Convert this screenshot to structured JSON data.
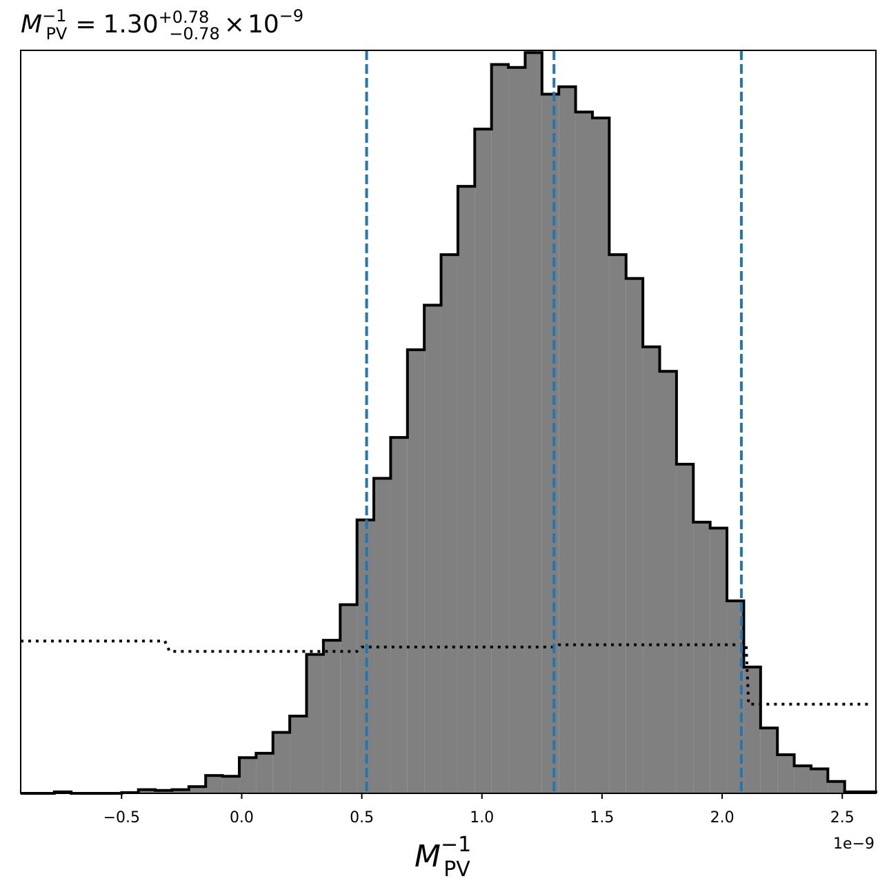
{
  "chart_data": {
    "type": "histogram",
    "title": {
      "symbol": "M",
      "symbol_sub": "PV",
      "symbol_sup": "−1",
      "equals": "=",
      "value": "1.30",
      "upper": "+0.78",
      "lower": "−0.78",
      "times": "×",
      "base": "10",
      "exponent": "−9"
    },
    "xlabel": {
      "symbol": "M",
      "sub": "PV",
      "sup": "−1"
    },
    "x_offset_text": "1e−9",
    "xlim": [
      -0.92,
      2.64
    ],
    "x_scale_factor": 1e-09,
    "xticks": [
      {
        "value": -0.5,
        "label": "−0.5"
      },
      {
        "value": 0.0,
        "label": "0.0"
      },
      {
        "value": 0.5,
        "label": "0.5"
      },
      {
        "value": 1.0,
        "label": "1.0"
      },
      {
        "value": 1.5,
        "label": "1.5"
      },
      {
        "value": 2.0,
        "label": "2.0"
      },
      {
        "value": 2.5,
        "label": "2.5"
      }
    ],
    "ylim": [
      0,
      1.0
    ],
    "yticks_shown": false,
    "grid": false,
    "histogram": {
      "bin_edges": [
        -0.92,
        -0.85,
        -0.78,
        -0.71,
        -0.64,
        -0.57,
        -0.5,
        -0.43,
        -0.36,
        -0.29,
        -0.22,
        -0.15,
        -0.08,
        -0.01,
        0.06,
        0.13,
        0.2,
        0.27,
        0.34,
        0.41,
        0.48,
        0.55,
        0.62,
        0.69,
        0.76,
        0.83,
        0.9,
        0.97,
        1.04,
        1.11,
        1.18,
        1.25,
        1.32,
        1.39,
        1.46,
        1.53,
        1.6,
        1.67,
        1.74,
        1.81,
        1.88,
        1.95,
        2.02,
        2.09,
        2.16,
        2.23,
        2.3,
        2.37,
        2.44,
        2.51,
        2.58,
        2.64
      ],
      "counts": [
        0,
        0,
        0.002,
        0,
        0,
        0,
        0.001,
        0.005,
        0.004,
        0.005,
        0.009,
        0.024,
        0.023,
        0.048,
        0.054,
        0.082,
        0.104,
        0.187,
        0.206,
        0.254,
        0.368,
        0.424,
        0.479,
        0.597,
        0.657,
        0.725,
        0.817,
        0.894,
        0.981,
        0.977,
        0.997,
        0.941,
        0.951,
        0.917,
        0.909,
        0.725,
        0.693,
        0.601,
        0.568,
        0.443,
        0.365,
        0.357,
        0.259,
        0.17,
        0.088,
        0.052,
        0.037,
        0.033,
        0.016,
        0.002,
        0.002
      ],
      "fill_color": "#808080",
      "edge_color": "#000000"
    },
    "dotted_curve": {
      "color": "#000000",
      "x": [
        -0.92,
        -0.32,
        -0.3,
        0.48,
        0.5,
        1.3,
        1.32,
        2.08,
        2.1,
        2.11,
        2.62
      ],
      "y": [
        0.205,
        0.205,
        0.191,
        0.191,
        0.197,
        0.197,
        0.2,
        0.2,
        0.2,
        0.12,
        0.12
      ]
    },
    "vlines": {
      "color": "#1f77b4",
      "style": "dashed",
      "x": [
        0.52,
        1.3,
        2.08
      ]
    }
  }
}
